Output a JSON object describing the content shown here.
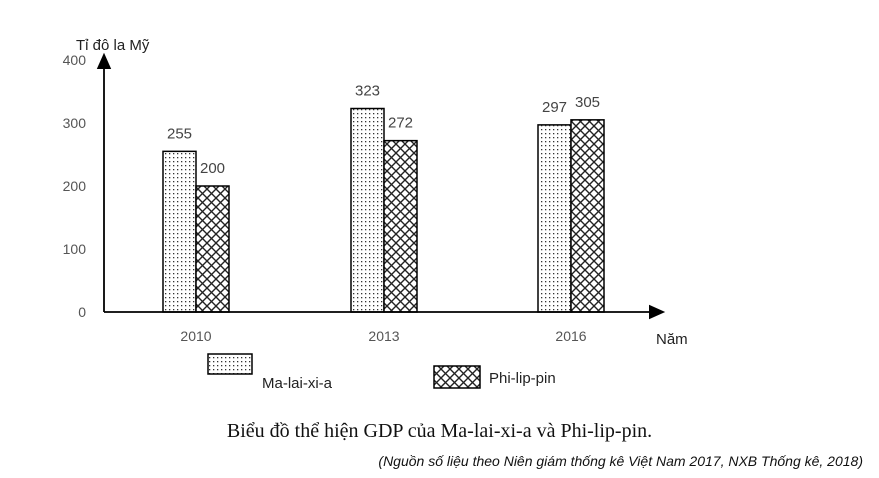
{
  "chart_data": {
    "type": "bar",
    "categories": [
      "2010",
      "2013",
      "2016"
    ],
    "series": [
      {
        "name": "Ma-lai-xi-a",
        "values": [
          255,
          323,
          297
        ],
        "pattern": "dots"
      },
      {
        "name": "Phi-lip-pin",
        "values": [
          200,
          272,
          305
        ],
        "pattern": "crosshatch"
      }
    ],
    "ylabel": "Tỉ đô la Mỹ",
    "xlabel": "Năm",
    "ylim": [
      0,
      400
    ],
    "yticks": [
      0,
      100,
      200,
      300,
      400
    ],
    "grid": false,
    "legend_position": "bottom"
  },
  "caption": "Biểu đồ thể hiện GDP của Ma-lai-xi-a và Phi-lip-pin.",
  "source": "(Nguồn số liệu theo Niên giám thống kê Việt Nam 2017, NXB Thống kê, 2018)",
  "colors": {
    "axis": "#000000",
    "bar_fill": "#ffffff",
    "pattern": "#222222"
  }
}
